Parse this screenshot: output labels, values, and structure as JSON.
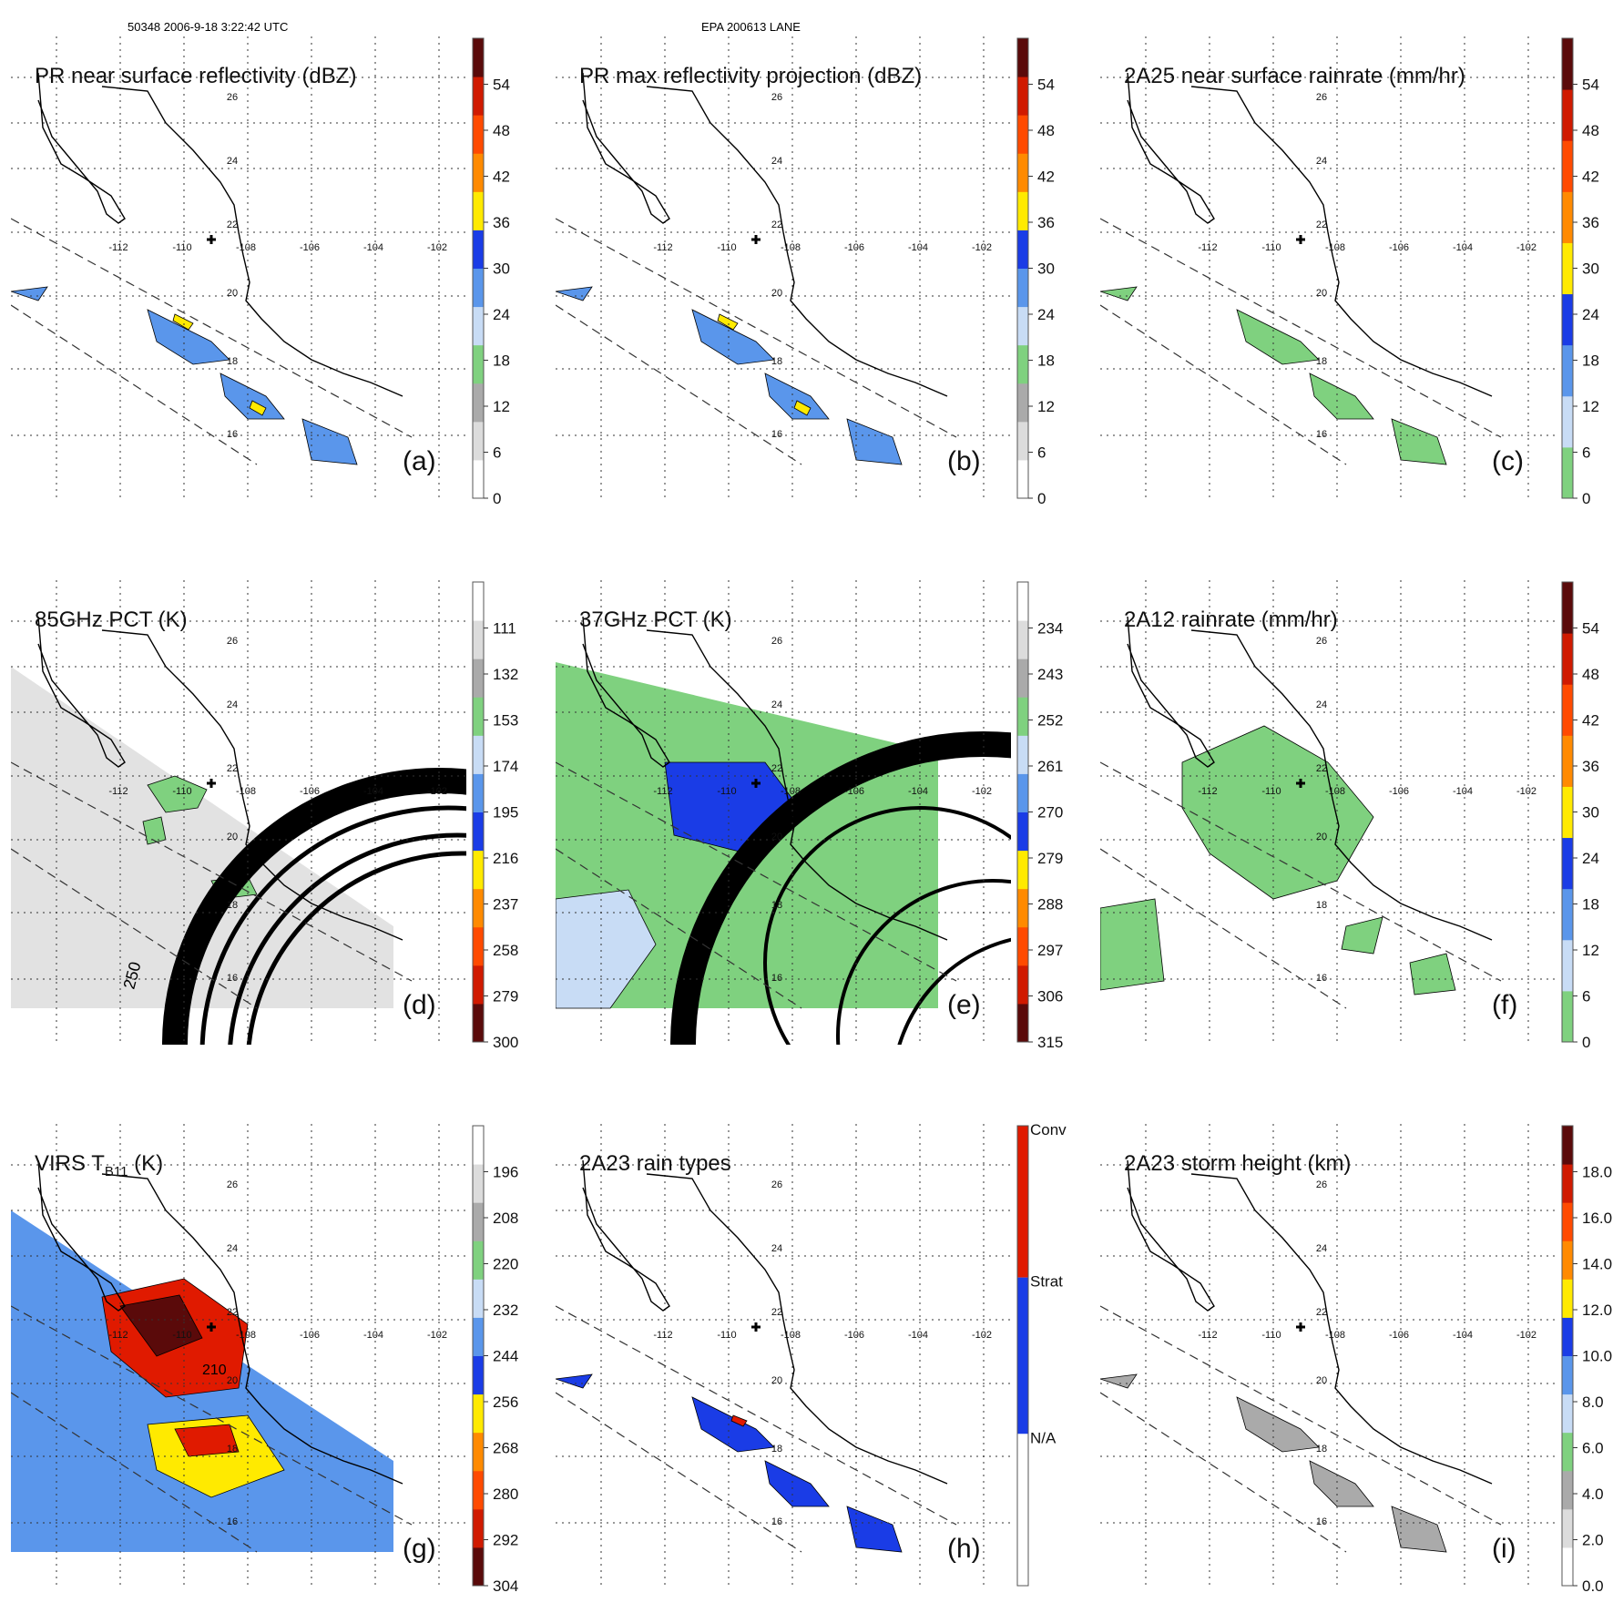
{
  "header": {
    "left": "50348 2006-9-18 3:22:42 UTC",
    "center": "EPA 200613 LANE"
  },
  "map": {
    "lon_ticks": [
      "-112",
      "-110",
      "-108",
      "-106",
      "-104",
      "-102"
    ],
    "lat_ticks": [
      "26",
      "24",
      "22",
      "20",
      "18",
      "16"
    ]
  },
  "colors": {
    "black": "#000000",
    "green": "#7fd17f",
    "light_blue": "#9cc8f0",
    "blue": "#1a3ce6",
    "yellow": "#ffea00",
    "orange": "#ff8a00",
    "red": "#e01a00",
    "dark_red": "#5a0a0a"
  },
  "chart_data": [
    {
      "type": "heatmap",
      "id": "a",
      "label": "(a)",
      "title": "PR near surface reflectivity (dBZ)",
      "colorbar": {
        "ticks": [
          "54",
          "48",
          "42",
          "36",
          "30",
          "24",
          "18",
          "12",
          "6",
          "0"
        ],
        "range": [
          0,
          60
        ]
      }
    },
    {
      "type": "heatmap",
      "id": "b",
      "label": "(b)",
      "title": "PR max reflectivity projection (dBZ)",
      "colorbar": {
        "ticks": [
          "54",
          "48",
          "42",
          "36",
          "30",
          "24",
          "18",
          "12",
          "6",
          "0"
        ],
        "range": [
          0,
          60
        ]
      }
    },
    {
      "type": "heatmap",
      "id": "c",
      "label": "(c)",
      "title": "2A25 near surface rainrate (mm/hr)",
      "colorbar": {
        "ticks": [
          "54",
          "48",
          "42",
          "36",
          "30",
          "24",
          "18",
          "12",
          "6",
          "0"
        ],
        "range": [
          0,
          60
        ]
      }
    },
    {
      "type": "heatmap",
      "id": "d",
      "label": "(d)",
      "title": "85GHz PCT (K)",
      "contour_label": "250",
      "colorbar": {
        "ticks": [
          "111",
          "132",
          "153",
          "174",
          "195",
          "216",
          "237",
          "258",
          "279",
          "300"
        ],
        "range": [
          90,
          300
        ]
      }
    },
    {
      "type": "heatmap",
      "id": "e",
      "label": "(e)",
      "title": "37GHz PCT (K)",
      "colorbar": {
        "ticks": [
          "234",
          "243",
          "252",
          "261",
          "270",
          "279",
          "288",
          "297",
          "306",
          "315"
        ],
        "range": [
          225,
          315
        ]
      }
    },
    {
      "type": "heatmap",
      "id": "f",
      "label": "(f)",
      "title": "2A12 rainrate (mm/hr)",
      "colorbar": {
        "ticks": [
          "54",
          "48",
          "42",
          "36",
          "30",
          "24",
          "18",
          "12",
          "6",
          "0"
        ],
        "range": [
          0,
          60
        ]
      }
    },
    {
      "type": "heatmap",
      "id": "g",
      "label": "(g)",
      "title": "VIRS T",
      "title_sub": "B11",
      "title_suffix": " (K)",
      "contour_label": "210",
      "colorbar": {
        "ticks": [
          "196",
          "208",
          "220",
          "232",
          "244",
          "256",
          "268",
          "280",
          "292",
          "304"
        ],
        "range": [
          184,
          304
        ]
      }
    },
    {
      "type": "heatmap",
      "id": "h",
      "label": "(h)",
      "title": "2A23 rain types",
      "colorbar": {
        "categories": [
          "Conv",
          "Strat",
          "N/A"
        ]
      }
    },
    {
      "type": "heatmap",
      "id": "i",
      "label": "(i)",
      "title": "2A23 storm height (km)",
      "colorbar": {
        "ticks": [
          "18.0",
          "16.0",
          "14.0",
          "12.0",
          "10.0",
          "8.0",
          "6.0",
          "4.0",
          "2.0",
          "0.0"
        ],
        "range": [
          0,
          20
        ]
      }
    }
  ]
}
